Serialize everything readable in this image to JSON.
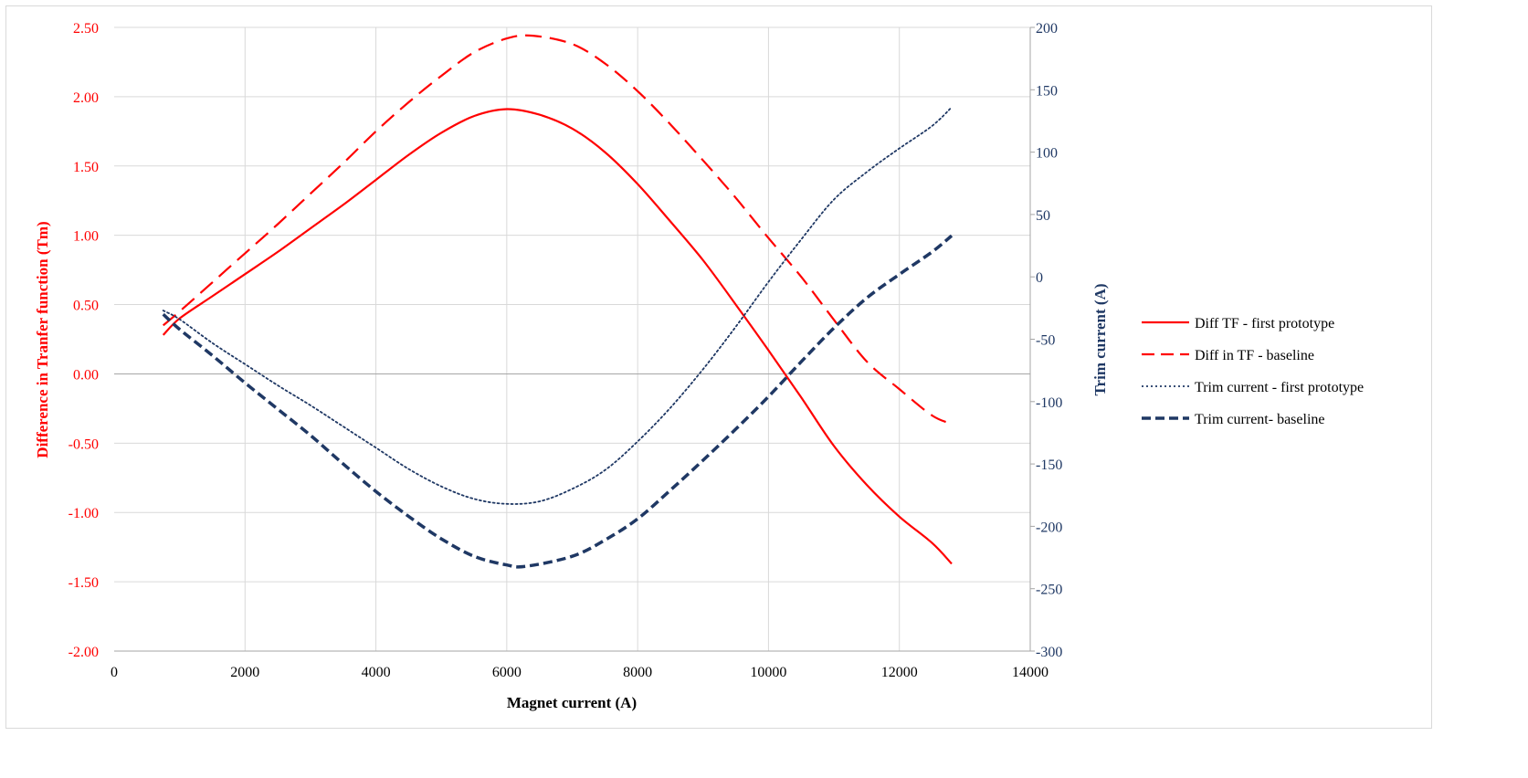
{
  "chart_data": {
    "type": "line",
    "xlabel": "Magnet current  (A)",
    "ylabel_left": "Difference in Tranfer function (Tm)",
    "ylabel_right": "Trim current  (A)",
    "xlim": [
      0,
      14000
    ],
    "xticks": [
      "0",
      "2000",
      "4000",
      "6000",
      "8000",
      "10000",
      "12000",
      "14000"
    ],
    "ylim_left": [
      -2.0,
      2.5
    ],
    "yticks_left": [
      "2.50",
      "2.00",
      "1.50",
      "1.00",
      "0.50",
      "0.00",
      "-0.50",
      "-1.00",
      "-1.50",
      "-2.00"
    ],
    "ylim_right": [
      -300,
      200
    ],
    "yticks_right": [
      "200",
      "150",
      "100",
      "50",
      "0",
      "-50",
      "-100",
      "-150",
      "-200",
      "-250",
      "-300"
    ],
    "grid": true,
    "legend_position": "right",
    "colors": {
      "red": "#ff0000",
      "navy": "#1f3864",
      "axis_right": "#1f3864"
    },
    "series": [
      {
        "name": "Diff TF - first prototype",
        "axis": "left",
        "style": "solid",
        "color": "#ff0000",
        "x": [
          750,
          1000,
          1500,
          2000,
          2500,
          3000,
          3500,
          4000,
          4500,
          5000,
          5500,
          6000,
          6500,
          7000,
          7500,
          8000,
          8500,
          9000,
          9500,
          10000,
          10500,
          11000,
          11500,
          12000,
          12500,
          12800
        ],
        "y": [
          0.28,
          0.4,
          0.56,
          0.72,
          0.88,
          1.05,
          1.22,
          1.4,
          1.58,
          1.74,
          1.86,
          1.91,
          1.87,
          1.77,
          1.6,
          1.37,
          1.1,
          0.82,
          0.5,
          0.17,
          -0.17,
          -0.52,
          -0.8,
          -1.03,
          -1.22,
          -1.37
        ]
      },
      {
        "name": "Diff in TF - baseline",
        "axis": "left",
        "style": "dashed",
        "color": "#ff0000",
        "x": [
          750,
          1000,
          1500,
          2000,
          2500,
          3000,
          3500,
          4000,
          4500,
          5000,
          5500,
          6000,
          6400,
          7000,
          7500,
          8000,
          8500,
          9000,
          9500,
          10000,
          10500,
          11000,
          11500,
          12000,
          12500,
          12800
        ],
        "y": [
          0.35,
          0.45,
          0.66,
          0.87,
          1.08,
          1.3,
          1.52,
          1.75,
          1.96,
          2.15,
          2.32,
          2.42,
          2.44,
          2.38,
          2.24,
          2.04,
          1.8,
          1.54,
          1.27,
          0.98,
          0.7,
          0.39,
          0.09,
          -0.11,
          -0.3,
          -0.36
        ]
      },
      {
        "name": "Trim current - first prototype",
        "axis": "right",
        "style": "dotted",
        "color": "#1f3864",
        "x": [
          750,
          1000,
          1500,
          2000,
          2500,
          3000,
          3500,
          4000,
          4500,
          5000,
          5500,
          6000,
          6500,
          7000,
          7500,
          8000,
          8500,
          9000,
          9500,
          10000,
          10500,
          11000,
          11500,
          12000,
          12500,
          12800
        ],
        "y": [
          -27,
          -34,
          -53,
          -70,
          -87,
          -103,
          -120,
          -137,
          -154,
          -168,
          -178,
          -182,
          -180,
          -170,
          -155,
          -132,
          -105,
          -74,
          -40,
          -4,
          30,
          62,
          84,
          103,
          121,
          136
        ]
      },
      {
        "name": "Trim current- baseline",
        "axis": "right",
        "style": "dashed-thick",
        "color": "#1f3864",
        "x": [
          750,
          1000,
          1500,
          2000,
          2500,
          3000,
          3500,
          4000,
          4500,
          5000,
          5500,
          6000,
          6300,
          7000,
          7500,
          8000,
          8500,
          9000,
          9500,
          10000,
          10500,
          11000,
          11500,
          12000,
          12500,
          12800
        ],
        "y": [
          -30,
          -42,
          -63,
          -85,
          -106,
          -127,
          -150,
          -172,
          -192,
          -210,
          -224,
          -231,
          -232,
          -224,
          -211,
          -194,
          -171,
          -147,
          -122,
          -96,
          -68,
          -41,
          -17,
          2,
          20,
          33
        ]
      }
    ]
  }
}
